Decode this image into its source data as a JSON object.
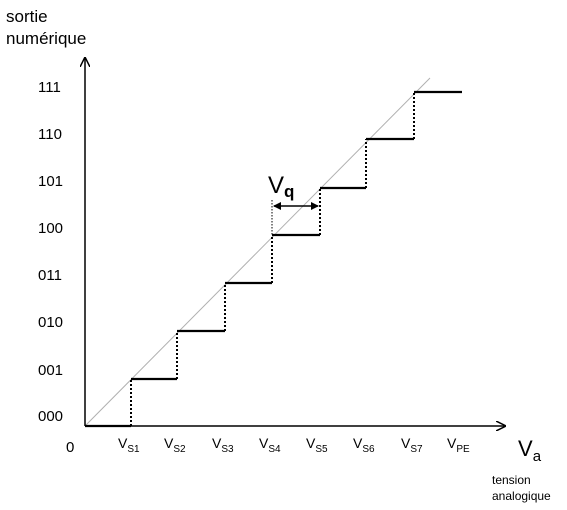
{
  "diagram": {
    "y_axis_title_line1": "sortie",
    "y_axis_title_line2": "numérique",
    "origin_label": "0",
    "y_ticks": [
      "000",
      "001",
      "010",
      "011",
      "100",
      "101",
      "110",
      "111"
    ],
    "x_ticks": [
      {
        "main": "V",
        "sub": "S1"
      },
      {
        "main": "V",
        "sub": "S2"
      },
      {
        "main": "V",
        "sub": "S3"
      },
      {
        "main": "V",
        "sub": "S4"
      },
      {
        "main": "V",
        "sub": "S5"
      },
      {
        "main": "V",
        "sub": "S6"
      },
      {
        "main": "V",
        "sub": "S7"
      },
      {
        "main": "V",
        "sub": "PE"
      }
    ],
    "x_axis_symbol_main": "V",
    "x_axis_symbol_sub": "a",
    "x_axis_title_line1": "tension",
    "x_axis_title_line2": "analogique",
    "quantum_main": "V",
    "quantum_sub": "q"
  }
}
